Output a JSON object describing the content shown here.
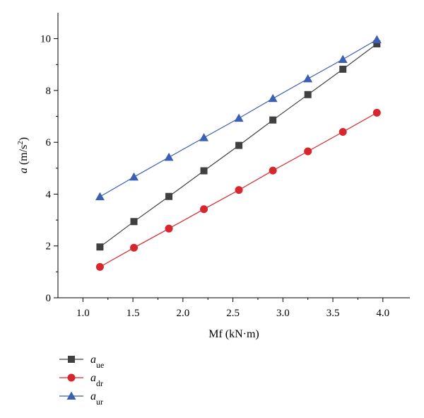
{
  "chart_data": {
    "type": "line",
    "xlabel": "Mf (kN·m)",
    "ylabel": {
      "var": "a",
      "unit_prefix": " (m/s",
      "unit_sup": "2",
      "unit_suffix": ")"
    },
    "xlim": [
      0.75,
      4.27
    ],
    "ylim": [
      0,
      11
    ],
    "x_ticks": [
      1.0,
      1.5,
      2.0,
      2.5,
      3.0,
      3.5,
      4.0
    ],
    "x_tick_labels": [
      "1.0",
      "1.5",
      "2.0",
      "2.5",
      "3.0",
      "3.5",
      "4.0"
    ],
    "y_ticks": [
      0,
      2,
      4,
      6,
      8,
      10
    ],
    "y_tick_labels": [
      "0",
      "2",
      "4",
      "6",
      "8",
      "10"
    ],
    "grid": false,
    "legend_position": "bottom-left",
    "x": [
      1.17,
      1.51,
      1.86,
      2.21,
      2.56,
      2.9,
      3.25,
      3.6,
      3.94
    ],
    "series": [
      {
        "name": "a_ue",
        "label_main": "a",
        "label_sub": "ue",
        "marker": "square",
        "color": "#404040",
        "values": [
          1.96,
          2.94,
          3.91,
          4.9,
          5.88,
          6.86,
          7.84,
          8.82,
          9.8
        ]
      },
      {
        "name": "a_dr",
        "label_main": "a",
        "label_sub": "dr",
        "marker": "circle",
        "color": "#d7262e",
        "values": [
          1.19,
          1.93,
          2.67,
          3.42,
          4.16,
          4.91,
          5.65,
          6.4,
          7.14
        ]
      },
      {
        "name": "a_ur",
        "label_main": "a",
        "label_sub": "ur",
        "marker": "triangle",
        "color": "#3b5fb4",
        "values": [
          3.9,
          4.66,
          5.42,
          6.18,
          6.93,
          7.69,
          8.45,
          9.2,
          9.96
        ]
      }
    ]
  }
}
